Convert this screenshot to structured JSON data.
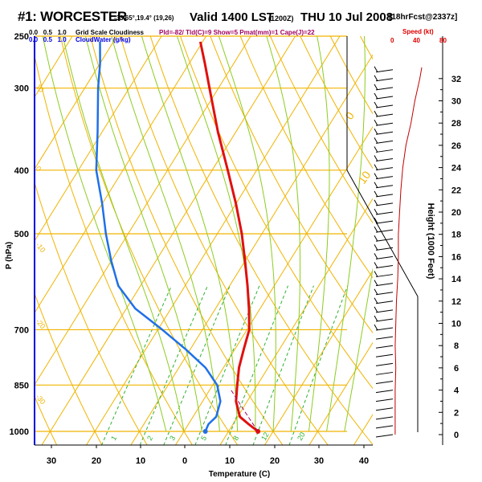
{
  "header": {
    "site": "#1: WORCESTER",
    "coords": "-33.65°,19.4° (19,26)",
    "valid": "Valid 1400 LST",
    "utc": "(1200Z)",
    "date": "THU 10 Jul 2008",
    "run": "[18hrFcst@2337z]"
  },
  "legend": {
    "cloud_scale": "0.0   0.5   1.0",
    "cloud_label": "Grid Scale Cloudiness",
    "water_scale": "0.0   0.5   1.0",
    "water_label": "CloudWater (g/kg)",
    "indices": "Pld=-82/ Tld(C)=9 Show=5 Pmat(mm)=1 Cape(J)=22",
    "speed_label": "Speed (kt)",
    "speed_ticks": [
      "0",
      "40",
      "80"
    ]
  },
  "colors": {
    "temperature": "#e01010",
    "dewpoint": "#2070e8",
    "isotherm": "#f0b400",
    "dry_adiabat": "#f0b400",
    "moist_adiabat": "#8ccc20",
    "mixing_ratio": "#30b030",
    "wind_speed": "#c00000",
    "axis": "#0000dd"
  },
  "chart_data": {
    "type": "skew-t log-p",
    "xlabel": "Temperature (C)",
    "ylabel": "P (hPa)",
    "y2label": "Height (1000 Feet)",
    "x_ticks": [
      "30",
      "20",
      "10",
      "0",
      "10",
      "20",
      "30",
      "40"
    ],
    "p_ticks": [
      "250",
      "300",
      "400",
      "500",
      "700",
      "850",
      "1000"
    ],
    "height_ticks": [
      "0",
      "2",
      "4",
      "6",
      "8",
      "10",
      "12",
      "14",
      "16",
      "18",
      "20",
      "22",
      "24",
      "26",
      "28",
      "30",
      "32"
    ],
    "xlim_at_1000hPa": [
      -35,
      47
    ],
    "plim_hPa": [
      250,
      1000
    ],
    "y_scale": "log",
    "isotherm_labels": [
      "0",
      "10",
      "20",
      "30"
    ],
    "dry_adiabat_labels": [
      "10",
      "0",
      "-10",
      "-20",
      "-30"
    ],
    "mixing_ratio_labels": [
      "1",
      "2",
      "3",
      "5",
      "8",
      "12",
      "20"
    ],
    "series": [
      {
        "values": [
          {
            "p": 1000,
            "t": 16.6
          },
          {
            "p": 975,
            "t": 13.5
          },
          {
            "p": 950,
            "t": 10.5
          },
          {
            "p": 900,
            "t": 7.5
          },
          {
            "p": 850,
            "t": 5.5
          },
          {
            "p": 800,
            "t": 3.5
          },
          {
            "p": 750,
            "t": 2.0
          },
          {
            "p": 700,
            "t": 0.5
          },
          {
            "p": 650,
            "t": -2.5
          },
          {
            "p": 600,
            "t": -6.0
          },
          {
            "p": 550,
            "t": -10.0
          },
          {
            "p": 500,
            "t": -14.5
          },
          {
            "p": 450,
            "t": -20.0
          },
          {
            "p": 400,
            "t": -26.5
          },
          {
            "p": 350,
            "t": -34.0
          },
          {
            "p": 300,
            "t": -42.0
          },
          {
            "p": 275,
            "t": -46.5
          },
          {
            "p": 255,
            "t": -50.5
          }
        ]
      },
      {
        "values": [
          {
            "p": 1000,
            "t": 4.8
          },
          {
            "p": 975,
            "t": 4.5
          },
          {
            "p": 950,
            "t": 5.2
          },
          {
            "p": 900,
            "t": 4.0
          },
          {
            "p": 850,
            "t": 1.0
          },
          {
            "p": 800,
            "t": -4.0
          },
          {
            "p": 750,
            "t": -11.0
          },
          {
            "p": 700,
            "t": -19.0
          },
          {
            "p": 650,
            "t": -28.0
          },
          {
            "p": 600,
            "t": -35.0
          },
          {
            "p": 550,
            "t": -40.0
          },
          {
            "p": 500,
            "t": -45.0
          },
          {
            "p": 450,
            "t": -50.0
          },
          {
            "p": 400,
            "t": -56.0
          },
          {
            "p": 350,
            "t": -61.0
          },
          {
            "p": 300,
            "t": -67.0
          },
          {
            "p": 275,
            "t": -70.0
          },
          {
            "p": 255,
            "t": -73.0
          }
        ]
      }
    ],
    "wind_speed_kt": [
      {
        "h": 0,
        "v": 5
      },
      {
        "h": 2,
        "v": 5
      },
      {
        "h": 4,
        "v": 5
      },
      {
        "h": 6,
        "v": 6
      },
      {
        "h": 8,
        "v": 5
      },
      {
        "h": 10,
        "v": 6
      },
      {
        "h": 12,
        "v": 7
      },
      {
        "h": 14,
        "v": 9
      },
      {
        "h": 16,
        "v": 10
      },
      {
        "h": 18,
        "v": 10
      },
      {
        "h": 20,
        "v": 12
      },
      {
        "h": 22,
        "v": 14
      },
      {
        "h": 24,
        "v": 17
      },
      {
        "h": 26,
        "v": 22
      },
      {
        "h": 28,
        "v": 30
      },
      {
        "h": 30,
        "v": 36
      },
      {
        "h": 32,
        "v": 44
      },
      {
        "h": 33,
        "v": 47
      }
    ]
  }
}
